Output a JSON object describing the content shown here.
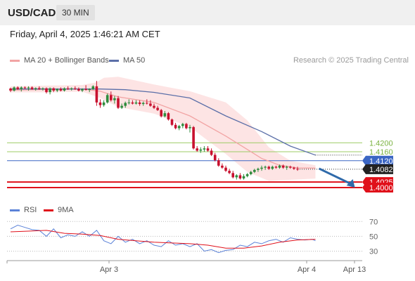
{
  "header": {
    "symbol": "USD/CAD",
    "interval": "30 MIN"
  },
  "timestamp": "Friday, April 4, 2025 1:46:21 AM CET",
  "legend": {
    "ma20_label": "MA 20 + Bollinger Bands",
    "ma50_label": "MA 50",
    "credit": "Research © 2025 Trading Central",
    "rsi_label": "RSI",
    "rsi_ma_label": "9MA"
  },
  "colors": {
    "bull": "#2e8b3c",
    "bear": "#c8102e",
    "bollinger_fill": "#fde1e1",
    "ma20": "#f2a4a4",
    "ma50": "#5b6fa8",
    "resistance": "#9ccc65",
    "pivot": "#3b66c4",
    "support": "#e0101a",
    "rsi": "#5b82d8",
    "rsi_ma": "#e0101a",
    "arrow": "#2f6aaa"
  },
  "chart_data": {
    "type": "candlestick",
    "x_tick_labels": [
      "Apr 3",
      "Apr 4",
      "Apr 13"
    ],
    "y_range": [
      1.395,
      1.453
    ],
    "levels": [
      {
        "label": "1.4200",
        "value": 1.42,
        "kind": "resistance"
      },
      {
        "label": "1.4160",
        "value": 1.416,
        "kind": "resistance"
      },
      {
        "label": "1.4120",
        "value": 1.412,
        "kind": "pivot"
      },
      {
        "label": "1.4082",
        "value": 1.4082,
        "kind": "last"
      },
      {
        "label": "1.4025",
        "value": 1.4025,
        "kind": "support"
      },
      {
        "label": "1.4000",
        "value": 1.4,
        "kind": "support"
      }
    ],
    "candles": [
      [
        1.4442,
        1.4446,
        1.4426,
        1.4433
      ],
      [
        1.4433,
        1.4452,
        1.4429,
        1.4447
      ],
      [
        1.4447,
        1.4452,
        1.4436,
        1.444
      ],
      [
        1.444,
        1.4452,
        1.4429,
        1.4447
      ],
      [
        1.4447,
        1.4452,
        1.444,
        1.4444
      ],
      [
        1.4444,
        1.4452,
        1.4433,
        1.4447
      ],
      [
        1.4447,
        1.4452,
        1.4436,
        1.444
      ],
      [
        1.444,
        1.4447,
        1.4433,
        1.4444
      ],
      [
        1.4444,
        1.4452,
        1.4436,
        1.444
      ],
      [
        1.444,
        1.4447,
        1.4433,
        1.4443
      ],
      [
        1.4443,
        1.4447,
        1.442,
        1.4426
      ],
      [
        1.4426,
        1.4447,
        1.4416,
        1.4443
      ],
      [
        1.4443,
        1.4447,
        1.4426,
        1.4433
      ],
      [
        1.4433,
        1.4443,
        1.4426,
        1.444
      ],
      [
        1.444,
        1.4447,
        1.4429,
        1.4433
      ],
      [
        1.4433,
        1.4447,
        1.4429,
        1.4443
      ],
      [
        1.4443,
        1.4452,
        1.4436,
        1.444
      ],
      [
        1.444,
        1.4447,
        1.4433,
        1.4443
      ],
      [
        1.4443,
        1.4452,
        1.4436,
        1.444
      ],
      [
        1.444,
        1.4447,
        1.4429,
        1.4433
      ],
      [
        1.4433,
        1.4443,
        1.4426,
        1.444
      ],
      [
        1.444,
        1.4457,
        1.4433,
        1.4436
      ],
      [
        1.4436,
        1.4443,
        1.4426,
        1.444
      ],
      [
        1.444,
        1.4457,
        1.4436,
        1.4452
      ],
      [
        1.4452,
        1.4476,
        1.4365,
        1.438
      ],
      [
        1.438,
        1.4394,
        1.4356,
        1.4368
      ],
      [
        1.4368,
        1.439,
        1.4361,
        1.438
      ],
      [
        1.438,
        1.442,
        1.4375,
        1.4413
      ],
      [
        1.4413,
        1.4429,
        1.4384,
        1.439
      ],
      [
        1.439,
        1.4409,
        1.4375,
        1.4399
      ],
      [
        1.4399,
        1.4409,
        1.4351,
        1.4356
      ],
      [
        1.4356,
        1.4375,
        1.4351,
        1.4365
      ],
      [
        1.4365,
        1.4384,
        1.4356,
        1.4378
      ],
      [
        1.4378,
        1.4394,
        1.4371,
        1.438
      ],
      [
        1.438,
        1.439,
        1.4371,
        1.4375
      ],
      [
        1.4375,
        1.439,
        1.4371,
        1.438
      ],
      [
        1.438,
        1.439,
        1.4365,
        1.4373
      ],
      [
        1.4373,
        1.4384,
        1.4365,
        1.4378
      ],
      [
        1.4378,
        1.4394,
        1.4371,
        1.4375
      ],
      [
        1.4375,
        1.439,
        1.4361,
        1.4365
      ],
      [
        1.4365,
        1.4375,
        1.4351,
        1.4356
      ],
      [
        1.4356,
        1.4365,
        1.4342,
        1.4346
      ],
      [
        1.4346,
        1.4351,
        1.4313,
        1.4318
      ],
      [
        1.4318,
        1.4342,
        1.4313,
        1.4332
      ],
      [
        1.4332,
        1.4337,
        1.4299,
        1.4304
      ],
      [
        1.4304,
        1.4308,
        1.4275,
        1.428
      ],
      [
        1.428,
        1.4289,
        1.426,
        1.4265
      ],
      [
        1.4265,
        1.428,
        1.4256,
        1.4275
      ],
      [
        1.4275,
        1.4289,
        1.4265,
        1.4284
      ],
      [
        1.4284,
        1.4289,
        1.426,
        1.4265
      ],
      [
        1.4265,
        1.428,
        1.4246,
        1.427
      ],
      [
        1.427,
        1.4275,
        1.417,
        1.4175
      ],
      [
        1.4175,
        1.4185,
        1.416,
        1.4165
      ],
      [
        1.4165,
        1.418,
        1.4155,
        1.417
      ],
      [
        1.417,
        1.4185,
        1.416,
        1.4175
      ],
      [
        1.4175,
        1.4185,
        1.416,
        1.4165
      ],
      [
        1.4165,
        1.4175,
        1.4141,
        1.4146
      ],
      [
        1.4146,
        1.4155,
        1.4117,
        1.4122
      ],
      [
        1.4122,
        1.4131,
        1.4093,
        1.4098
      ],
      [
        1.4098,
        1.4108,
        1.4084,
        1.4089
      ],
      [
        1.4089,
        1.4098,
        1.407,
        1.4075
      ],
      [
        1.4075,
        1.4084,
        1.406,
        1.4065
      ],
      [
        1.4065,
        1.4075,
        1.4041,
        1.4046
      ],
      [
        1.4046,
        1.406,
        1.4036,
        1.4055
      ],
      [
        1.4055,
        1.4065,
        1.4036,
        1.4041
      ],
      [
        1.4041,
        1.406,
        1.4036,
        1.4051
      ],
      [
        1.4051,
        1.4065,
        1.4046,
        1.406
      ],
      [
        1.406,
        1.4075,
        1.4055,
        1.407
      ],
      [
        1.407,
        1.4084,
        1.4065,
        1.4079
      ],
      [
        1.4079,
        1.4089,
        1.407,
        1.4084
      ],
      [
        1.4084,
        1.4098,
        1.4075,
        1.4089
      ],
      [
        1.4089,
        1.4098,
        1.4079,
        1.4093
      ],
      [
        1.4093,
        1.4098,
        1.4079,
        1.4084
      ],
      [
        1.4084,
        1.4098,
        1.4079,
        1.4093
      ],
      [
        1.4093,
        1.4098,
        1.4084,
        1.4089
      ],
      [
        1.4089,
        1.4103,
        1.4084,
        1.4098
      ],
      [
        1.4098,
        1.4103,
        1.4084,
        1.4089
      ],
      [
        1.4089,
        1.4098,
        1.4079,
        1.4093
      ],
      [
        1.4093,
        1.4098,
        1.4084,
        1.4089
      ],
      [
        1.4089,
        1.4093,
        1.4079,
        1.4084
      ],
      [
        1.4084,
        1.4093,
        1.4075,
        1.4082
      ]
    ],
    "ma20": [
      [
        0,
        1.4435
      ],
      [
        10,
        1.4438
      ],
      [
        20,
        1.444
      ],
      [
        25,
        1.443
      ],
      [
        30,
        1.4405
      ],
      [
        40,
        1.438
      ],
      [
        50,
        1.432
      ],
      [
        60,
        1.423
      ],
      [
        65,
        1.418
      ],
      [
        70,
        1.413
      ],
      [
        75,
        1.41
      ],
      [
        80,
        1.4088
      ],
      [
        85,
        1.4087
      ]
    ],
    "bollinger_upper": [
      [
        0,
        1.4452
      ],
      [
        10,
        1.4455
      ],
      [
        20,
        1.4458
      ],
      [
        24,
        1.447
      ],
      [
        26,
        1.449
      ],
      [
        30,
        1.4495
      ],
      [
        40,
        1.446
      ],
      [
        50,
        1.443
      ],
      [
        60,
        1.438
      ],
      [
        66,
        1.43
      ],
      [
        72,
        1.418
      ],
      [
        78,
        1.412
      ],
      [
        85,
        1.41
      ]
    ],
    "bollinger_lower": [
      [
        0,
        1.4425
      ],
      [
        10,
        1.4425
      ],
      [
        20,
        1.4428
      ],
      [
        25,
        1.44
      ],
      [
        30,
        1.436
      ],
      [
        40,
        1.433
      ],
      [
        50,
        1.427
      ],
      [
        60,
        1.415
      ],
      [
        66,
        1.407
      ],
      [
        72,
        1.403
      ],
      [
        78,
        1.4035
      ],
      [
        85,
        1.404
      ]
    ],
    "ma50": [
      [
        0,
        1.444
      ],
      [
        15,
        1.444
      ],
      [
        25,
        1.444
      ],
      [
        32,
        1.4437
      ],
      [
        40,
        1.4425
      ],
      [
        50,
        1.44
      ],
      [
        60,
        1.432
      ],
      [
        70,
        1.425
      ],
      [
        78,
        1.4185
      ],
      [
        85,
        1.4145
      ]
    ],
    "projection": {
      "from": [
        86,
        1.4085
      ],
      "to": [
        96,
        1.4
      ]
    },
    "rsi": {
      "y_range": [
        20,
        75
      ],
      "ticks": [
        30,
        50,
        70
      ],
      "values": [
        [
          0,
          60
        ],
        [
          2,
          65
        ],
        [
          4,
          62
        ],
        [
          6,
          59
        ],
        [
          8,
          58
        ],
        [
          10,
          50
        ],
        [
          12,
          60
        ],
        [
          14,
          48
        ],
        [
          16,
          52
        ],
        [
          18,
          50
        ],
        [
          20,
          56
        ],
        [
          22,
          50
        ],
        [
          24,
          58
        ],
        [
          26,
          44
        ],
        [
          28,
          40
        ],
        [
          30,
          50
        ],
        [
          32,
          42
        ],
        [
          34,
          46
        ],
        [
          36,
          40
        ],
        [
          38,
          44
        ],
        [
          40,
          38
        ],
        [
          42,
          36
        ],
        [
          44,
          44
        ],
        [
          46,
          38
        ],
        [
          48,
          40
        ],
        [
          50,
          36
        ],
        [
          52,
          40
        ],
        [
          54,
          30
        ],
        [
          56,
          32
        ],
        [
          58,
          28
        ],
        [
          60,
          31
        ],
        [
          62,
          32
        ],
        [
          64,
          38
        ],
        [
          66,
          36
        ],
        [
          68,
          42
        ],
        [
          70,
          40
        ],
        [
          72,
          44
        ],
        [
          74,
          46
        ],
        [
          76,
          42
        ],
        [
          78,
          48
        ],
        [
          80,
          46
        ],
        [
          82,
          45
        ],
        [
          84,
          46
        ],
        [
          85,
          44
        ]
      ],
      "ma": [
        [
          0,
          56
        ],
        [
          5,
          57
        ],
        [
          10,
          58
        ],
        [
          15,
          54
        ],
        [
          20,
          53
        ],
        [
          25,
          51
        ],
        [
          30,
          46
        ],
        [
          35,
          44
        ],
        [
          40,
          42
        ],
        [
          45,
          41
        ],
        [
          50,
          40
        ],
        [
          55,
          38
        ],
        [
          60,
          34
        ],
        [
          65,
          34
        ],
        [
          70,
          37
        ],
        [
          75,
          42
        ],
        [
          80,
          45
        ],
        [
          85,
          46
        ]
      ]
    }
  }
}
